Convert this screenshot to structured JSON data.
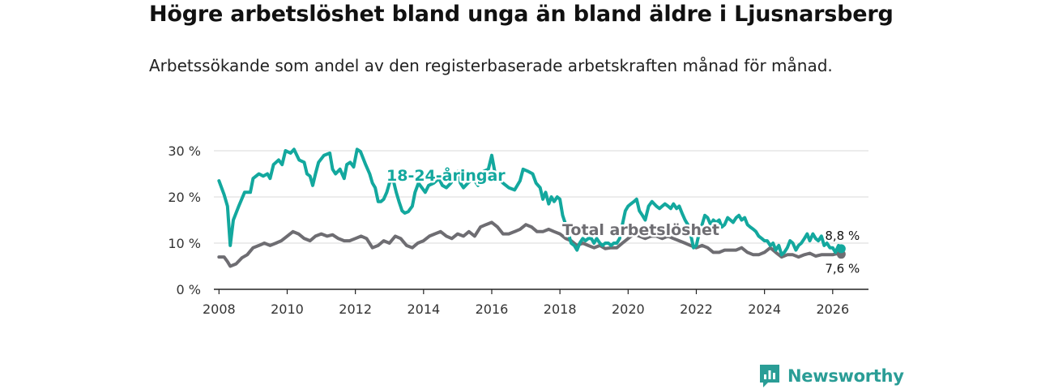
{
  "header": {
    "title": "Högre arbetslöshet bland unga än bland äldre i Ljusnarsberg",
    "subtitle": "Arbetssökande som andel av den registerbaserade arbetskraften månad för månad."
  },
  "brand": {
    "name": "Newsworthy",
    "icon": "newsworthy-logo-icon",
    "color": "#2a9d96"
  },
  "chart_data": {
    "type": "line",
    "title": "Högre arbetslöshet bland unga än bland äldre i Ljusnarsberg",
    "xlabel": "",
    "ylabel": "",
    "xlim": [
      2007.85,
      2027.05
    ],
    "ylim": [
      0,
      30
    ],
    "grid": true,
    "x_ticks": [
      2008,
      2010,
      2012,
      2014,
      2016,
      2018,
      2020,
      2022,
      2024,
      2026
    ],
    "x_tick_labels": [
      "2008",
      "2010",
      "2012",
      "2014",
      "2016",
      "2018",
      "2020",
      "2022",
      "2024",
      "2026"
    ],
    "y_ticks": [
      0,
      10,
      20,
      30
    ],
    "y_tick_labels": [
      "0 %",
      "10 %",
      "20 %",
      "30 %"
    ],
    "series": [
      {
        "name": "18-24-åringar",
        "label": "18-24-åringar",
        "color": "#13a89e",
        "end_label": "8,8 %",
        "points": [
          [
            2008.0,
            23.5
          ],
          [
            2008.15,
            20.5
          ],
          [
            2008.25,
            18
          ],
          [
            2008.33,
            9.5
          ],
          [
            2008.42,
            15
          ],
          [
            2008.58,
            18
          ],
          [
            2008.75,
            21
          ],
          [
            2008.92,
            21
          ],
          [
            2009.0,
            24
          ],
          [
            2009.17,
            25
          ],
          [
            2009.3,
            24.5
          ],
          [
            2009.42,
            25
          ],
          [
            2009.5,
            24
          ],
          [
            2009.6,
            27
          ],
          [
            2009.75,
            28
          ],
          [
            2009.85,
            27
          ],
          [
            2009.95,
            30
          ],
          [
            2010.1,
            29.5
          ],
          [
            2010.2,
            30.3
          ],
          [
            2010.35,
            28
          ],
          [
            2010.5,
            27.5
          ],
          [
            2010.58,
            25
          ],
          [
            2010.67,
            24.5
          ],
          [
            2010.75,
            22.5
          ],
          [
            2010.83,
            25
          ],
          [
            2010.92,
            27.5
          ],
          [
            2011.08,
            29
          ],
          [
            2011.25,
            29.5
          ],
          [
            2011.33,
            26
          ],
          [
            2011.42,
            25
          ],
          [
            2011.55,
            26
          ],
          [
            2011.67,
            24
          ],
          [
            2011.75,
            27
          ],
          [
            2011.85,
            27.5
          ],
          [
            2011.95,
            26.5
          ],
          [
            2012.05,
            30.3
          ],
          [
            2012.15,
            29.8
          ],
          [
            2012.3,
            27
          ],
          [
            2012.42,
            25
          ],
          [
            2012.5,
            23
          ],
          [
            2012.58,
            22
          ],
          [
            2012.67,
            19
          ],
          [
            2012.75,
            19
          ],
          [
            2012.83,
            19.5
          ],
          [
            2012.92,
            21
          ],
          [
            2013.0,
            23
          ],
          [
            2013.1,
            24
          ],
          [
            2013.2,
            21
          ],
          [
            2013.28,
            19
          ],
          [
            2013.37,
            17
          ],
          [
            2013.45,
            16.5
          ],
          [
            2013.55,
            16.8
          ],
          [
            2013.67,
            18
          ],
          [
            2013.75,
            21
          ],
          [
            2013.85,
            23
          ],
          [
            2013.95,
            22
          ],
          [
            2014.05,
            21
          ],
          [
            2014.15,
            22.5
          ],
          [
            2014.3,
            23
          ],
          [
            2014.45,
            24
          ],
          [
            2014.55,
            22.5
          ],
          [
            2014.67,
            22
          ],
          [
            2014.8,
            23
          ],
          [
            2014.92,
            24.5
          ],
          [
            2015.0,
            25.5
          ],
          [
            2015.08,
            23
          ],
          [
            2015.17,
            22
          ],
          [
            2015.3,
            23
          ],
          [
            2015.45,
            24
          ],
          [
            2015.6,
            22.5
          ],
          [
            2015.75,
            25.5
          ],
          [
            2015.9,
            26
          ],
          [
            2016.0,
            29
          ],
          [
            2016.1,
            25
          ],
          [
            2016.2,
            24
          ],
          [
            2016.33,
            23
          ],
          [
            2016.5,
            22
          ],
          [
            2016.67,
            21.5
          ],
          [
            2016.83,
            23.5
          ],
          [
            2016.92,
            26
          ],
          [
            2017.08,
            25.5
          ],
          [
            2017.2,
            25
          ],
          [
            2017.3,
            23
          ],
          [
            2017.42,
            22
          ],
          [
            2017.5,
            19.5
          ],
          [
            2017.58,
            21
          ],
          [
            2017.67,
            18.5
          ],
          [
            2017.75,
            20
          ],
          [
            2017.83,
            19
          ],
          [
            2017.92,
            20
          ],
          [
            2018.0,
            19.5
          ],
          [
            2018.08,
            16
          ],
          [
            2018.17,
            14
          ],
          [
            2018.25,
            12
          ],
          [
            2018.33,
            10
          ],
          [
            2018.42,
            9.5
          ],
          [
            2018.5,
            8.5
          ],
          [
            2018.58,
            10
          ],
          [
            2018.67,
            11
          ],
          [
            2018.75,
            10.5
          ],
          [
            2018.83,
            11
          ],
          [
            2018.92,
            11
          ],
          [
            2019.0,
            10
          ],
          [
            2019.08,
            11
          ],
          [
            2019.17,
            10
          ],
          [
            2019.25,
            9.5
          ],
          [
            2019.33,
            10
          ],
          [
            2019.42,
            10
          ],
          [
            2019.5,
            9.5
          ],
          [
            2019.58,
            10
          ],
          [
            2019.67,
            10
          ],
          [
            2019.75,
            11
          ],
          [
            2019.83,
            14
          ],
          [
            2019.92,
            17
          ],
          [
            2020.0,
            18
          ],
          [
            2020.08,
            18.5
          ],
          [
            2020.17,
            19
          ],
          [
            2020.25,
            19.5
          ],
          [
            2020.33,
            17
          ],
          [
            2020.42,
            16
          ],
          [
            2020.5,
            15
          ],
          [
            2020.6,
            18
          ],
          [
            2020.7,
            19
          ],
          [
            2020.83,
            18
          ],
          [
            2020.92,
            17.5
          ],
          [
            2021.0,
            18
          ],
          [
            2021.08,
            18.5
          ],
          [
            2021.17,
            18
          ],
          [
            2021.25,
            17.5
          ],
          [
            2021.33,
            18.5
          ],
          [
            2021.42,
            17.5
          ],
          [
            2021.5,
            18
          ],
          [
            2021.58,
            16.5
          ],
          [
            2021.67,
            15
          ],
          [
            2021.75,
            14
          ],
          [
            2021.83,
            12
          ],
          [
            2021.92,
            9
          ],
          [
            2022.0,
            9.5
          ],
          [
            2022.08,
            12
          ],
          [
            2022.17,
            14
          ],
          [
            2022.25,
            16
          ],
          [
            2022.33,
            15.5
          ],
          [
            2022.42,
            14
          ],
          [
            2022.5,
            15
          ],
          [
            2022.58,
            14.5
          ],
          [
            2022.67,
            15
          ],
          [
            2022.75,
            13.5
          ],
          [
            2022.83,
            14
          ],
          [
            2022.92,
            15.5
          ],
          [
            2023.0,
            15
          ],
          [
            2023.08,
            14.5
          ],
          [
            2023.17,
            15.5
          ],
          [
            2023.25,
            16
          ],
          [
            2023.33,
            15
          ],
          [
            2023.42,
            15.5
          ],
          [
            2023.5,
            14
          ],
          [
            2023.58,
            13.5
          ],
          [
            2023.67,
            13
          ],
          [
            2023.75,
            12.5
          ],
          [
            2023.83,
            11.5
          ],
          [
            2023.92,
            11
          ],
          [
            2024.0,
            10.5
          ],
          [
            2024.08,
            10.5
          ],
          [
            2024.17,
            9.5
          ],
          [
            2024.25,
            10
          ],
          [
            2024.33,
            8.5
          ],
          [
            2024.42,
            9.5
          ],
          [
            2024.5,
            7.5
          ],
          [
            2024.58,
            8
          ],
          [
            2024.67,
            9
          ],
          [
            2024.75,
            10.5
          ],
          [
            2024.83,
            10
          ],
          [
            2024.92,
            8.5
          ],
          [
            2025.0,
            9.5
          ],
          [
            2025.08,
            10
          ],
          [
            2025.17,
            11
          ],
          [
            2025.25,
            12
          ],
          [
            2025.33,
            10.5
          ],
          [
            2025.42,
            12
          ],
          [
            2025.5,
            11
          ],
          [
            2025.58,
            10.5
          ],
          [
            2025.67,
            11.5
          ],
          [
            2025.75,
            9.5
          ],
          [
            2025.83,
            10
          ],
          [
            2025.92,
            9
          ],
          [
            2026.0,
            9
          ],
          [
            2026.08,
            8
          ],
          [
            2026.17,
            9.5
          ],
          [
            2026.25,
            8.8
          ]
        ]
      },
      {
        "name": "Total arbetslöshet",
        "label": "Total arbetslöshet",
        "color": "#6e6d72",
        "end_label": "7,6 %",
        "points": [
          [
            2008.0,
            7
          ],
          [
            2008.15,
            7
          ],
          [
            2008.25,
            6
          ],
          [
            2008.33,
            5
          ],
          [
            2008.5,
            5.5
          ],
          [
            2008.67,
            6.8
          ],
          [
            2008.83,
            7.5
          ],
          [
            2009.0,
            9
          ],
          [
            2009.17,
            9.5
          ],
          [
            2009.33,
            10
          ],
          [
            2009.5,
            9.5
          ],
          [
            2009.67,
            10
          ],
          [
            2009.83,
            10.5
          ],
          [
            2010.0,
            11.5
          ],
          [
            2010.17,
            12.5
          ],
          [
            2010.33,
            12
          ],
          [
            2010.5,
            11
          ],
          [
            2010.67,
            10.5
          ],
          [
            2010.83,
            11.5
          ],
          [
            2011.0,
            12
          ],
          [
            2011.17,
            11.5
          ],
          [
            2011.33,
            11.8
          ],
          [
            2011.5,
            11
          ],
          [
            2011.67,
            10.5
          ],
          [
            2011.83,
            10.5
          ],
          [
            2012.0,
            11
          ],
          [
            2012.17,
            11.5
          ],
          [
            2012.33,
            11
          ],
          [
            2012.5,
            9
          ],
          [
            2012.67,
            9.5
          ],
          [
            2012.83,
            10.5
          ],
          [
            2013.0,
            10
          ],
          [
            2013.17,
            11.5
          ],
          [
            2013.33,
            11
          ],
          [
            2013.5,
            9.5
          ],
          [
            2013.67,
            9
          ],
          [
            2013.83,
            10
          ],
          [
            2014.0,
            10.5
          ],
          [
            2014.17,
            11.5
          ],
          [
            2014.33,
            12
          ],
          [
            2014.5,
            12.5
          ],
          [
            2014.67,
            11.5
          ],
          [
            2014.83,
            11
          ],
          [
            2015.0,
            12
          ],
          [
            2015.17,
            11.5
          ],
          [
            2015.33,
            12.5
          ],
          [
            2015.5,
            11.5
          ],
          [
            2015.67,
            13.5
          ],
          [
            2015.83,
            14
          ],
          [
            2016.0,
            14.5
          ],
          [
            2016.17,
            13.5
          ],
          [
            2016.33,
            12
          ],
          [
            2016.5,
            12
          ],
          [
            2016.67,
            12.5
          ],
          [
            2016.83,
            13
          ],
          [
            2017.0,
            14
          ],
          [
            2017.17,
            13.5
          ],
          [
            2017.33,
            12.5
          ],
          [
            2017.5,
            12.5
          ],
          [
            2017.67,
            13
          ],
          [
            2017.83,
            12.5
          ],
          [
            2018.0,
            12
          ],
          [
            2018.17,
            11
          ],
          [
            2018.33,
            10.5
          ],
          [
            2018.5,
            9.5
          ],
          [
            2018.67,
            10
          ],
          [
            2018.83,
            9.5
          ],
          [
            2019.0,
            9
          ],
          [
            2019.17,
            9.5
          ],
          [
            2019.33,
            8.8
          ],
          [
            2019.5,
            9
          ],
          [
            2019.67,
            9
          ],
          [
            2019.83,
            10
          ],
          [
            2020.0,
            11
          ],
          [
            2020.17,
            12
          ],
          [
            2020.33,
            11.5
          ],
          [
            2020.5,
            11
          ],
          [
            2020.67,
            11.5
          ],
          [
            2020.83,
            11.5
          ],
          [
            2021.0,
            11
          ],
          [
            2021.17,
            11.5
          ],
          [
            2021.33,
            11
          ],
          [
            2021.5,
            10.5
          ],
          [
            2021.67,
            10
          ],
          [
            2021.83,
            9.5
          ],
          [
            2022.0,
            9
          ],
          [
            2022.17,
            9.5
          ],
          [
            2022.33,
            9
          ],
          [
            2022.5,
            8
          ],
          [
            2022.67,
            8
          ],
          [
            2022.83,
            8.5
          ],
          [
            2023.0,
            8.5
          ],
          [
            2023.17,
            8.5
          ],
          [
            2023.33,
            9
          ],
          [
            2023.5,
            8
          ],
          [
            2023.67,
            7.5
          ],
          [
            2023.83,
            7.5
          ],
          [
            2024.0,
            8
          ],
          [
            2024.17,
            9
          ],
          [
            2024.33,
            8
          ],
          [
            2024.5,
            7
          ],
          [
            2024.67,
            7.5
          ],
          [
            2024.83,
            7.5
          ],
          [
            2025.0,
            7
          ],
          [
            2025.17,
            7.5
          ],
          [
            2025.33,
            7.8
          ],
          [
            2025.5,
            7.2
          ],
          [
            2025.67,
            7.5
          ],
          [
            2025.83,
            7.5
          ],
          [
            2026.0,
            7.5
          ],
          [
            2026.17,
            7.8
          ],
          [
            2026.25,
            7.6
          ]
        ]
      }
    ]
  }
}
